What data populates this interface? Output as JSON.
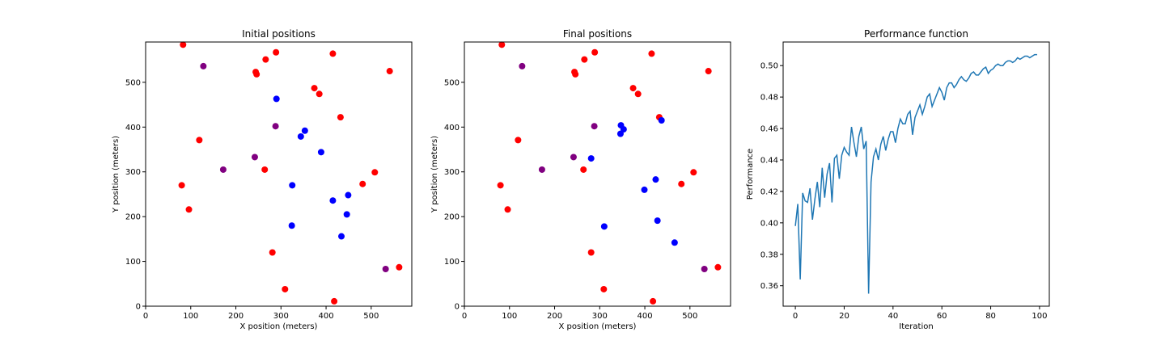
{
  "chart_data": [
    {
      "type": "scatter",
      "title": "Initial positions",
      "xlabel": "X position (meters)",
      "ylabel": "Y position (meters)",
      "xlim": [
        0,
        590
      ],
      "ylim": [
        0,
        590
      ],
      "xticks": [
        0,
        100,
        200,
        300,
        400,
        500
      ],
      "yticks": [
        0,
        100,
        200,
        300,
        400,
        500
      ],
      "grid": false,
      "colors": {
        "red": "#ff0000",
        "blue": "#0000ff",
        "purple": "#800080"
      },
      "points": [
        {
          "x": 83,
          "y": 584,
          "c": "red"
        },
        {
          "x": 128,
          "y": 536,
          "c": "purple"
        },
        {
          "x": 244,
          "y": 523,
          "c": "red"
        },
        {
          "x": 246,
          "y": 518,
          "c": "red"
        },
        {
          "x": 266,
          "y": 551,
          "c": "red"
        },
        {
          "x": 289,
          "y": 567,
          "c": "red"
        },
        {
          "x": 415,
          "y": 564,
          "c": "red"
        },
        {
          "x": 541,
          "y": 525,
          "c": "red"
        },
        {
          "x": 374,
          "y": 487,
          "c": "red"
        },
        {
          "x": 385,
          "y": 474,
          "c": "red"
        },
        {
          "x": 290,
          "y": 463,
          "c": "blue"
        },
        {
          "x": 432,
          "y": 422,
          "c": "red"
        },
        {
          "x": 288,
          "y": 402,
          "c": "purple"
        },
        {
          "x": 353,
          "y": 392,
          "c": "blue"
        },
        {
          "x": 344,
          "y": 379,
          "c": "blue"
        },
        {
          "x": 119,
          "y": 371,
          "c": "red"
        },
        {
          "x": 389,
          "y": 344,
          "c": "blue"
        },
        {
          "x": 242,
          "y": 333,
          "c": "purple"
        },
        {
          "x": 172,
          "y": 305,
          "c": "purple"
        },
        {
          "x": 264,
          "y": 305,
          "c": "red"
        },
        {
          "x": 508,
          "y": 299,
          "c": "red"
        },
        {
          "x": 80,
          "y": 270,
          "c": "red"
        },
        {
          "x": 325,
          "y": 270,
          "c": "blue"
        },
        {
          "x": 481,
          "y": 273,
          "c": "red"
        },
        {
          "x": 449,
          "y": 248,
          "c": "blue"
        },
        {
          "x": 415,
          "y": 236,
          "c": "blue"
        },
        {
          "x": 96,
          "y": 216,
          "c": "red"
        },
        {
          "x": 446,
          "y": 205,
          "c": "blue"
        },
        {
          "x": 324,
          "y": 180,
          "c": "blue"
        },
        {
          "x": 434,
          "y": 156,
          "c": "blue"
        },
        {
          "x": 281,
          "y": 120,
          "c": "red"
        },
        {
          "x": 532,
          "y": 83,
          "c": "purple"
        },
        {
          "x": 562,
          "y": 87,
          "c": "red"
        },
        {
          "x": 309,
          "y": 38,
          "c": "red"
        },
        {
          "x": 418,
          "y": 11,
          "c": "red"
        }
      ]
    },
    {
      "type": "scatter",
      "title": "Final positions",
      "xlabel": "X position (meters)",
      "ylabel": "Y position (meters)",
      "xlim": [
        0,
        590
      ],
      "ylim": [
        0,
        590
      ],
      "xticks": [
        0,
        100,
        200,
        300,
        400,
        500
      ],
      "yticks": [
        0,
        100,
        200,
        300,
        400,
        500
      ],
      "grid": false,
      "colors": {
        "red": "#ff0000",
        "blue": "#0000ff",
        "purple": "#800080"
      },
      "points": [
        {
          "x": 83,
          "y": 584,
          "c": "red"
        },
        {
          "x": 128,
          "y": 536,
          "c": "purple"
        },
        {
          "x": 244,
          "y": 523,
          "c": "red"
        },
        {
          "x": 246,
          "y": 518,
          "c": "red"
        },
        {
          "x": 266,
          "y": 551,
          "c": "red"
        },
        {
          "x": 289,
          "y": 567,
          "c": "red"
        },
        {
          "x": 415,
          "y": 564,
          "c": "red"
        },
        {
          "x": 541,
          "y": 525,
          "c": "red"
        },
        {
          "x": 374,
          "y": 487,
          "c": "red"
        },
        {
          "x": 385,
          "y": 474,
          "c": "red"
        },
        {
          "x": 288,
          "y": 402,
          "c": "purple"
        },
        {
          "x": 432,
          "y": 422,
          "c": "red"
        },
        {
          "x": 437,
          "y": 415,
          "c": "blue"
        },
        {
          "x": 347,
          "y": 404,
          "c": "blue"
        },
        {
          "x": 353,
          "y": 395,
          "c": "blue"
        },
        {
          "x": 346,
          "y": 385,
          "c": "blue"
        },
        {
          "x": 119,
          "y": 371,
          "c": "red"
        },
        {
          "x": 242,
          "y": 333,
          "c": "purple"
        },
        {
          "x": 281,
          "y": 330,
          "c": "blue"
        },
        {
          "x": 172,
          "y": 305,
          "c": "purple"
        },
        {
          "x": 264,
          "y": 305,
          "c": "red"
        },
        {
          "x": 508,
          "y": 299,
          "c": "red"
        },
        {
          "x": 424,
          "y": 283,
          "c": "blue"
        },
        {
          "x": 80,
          "y": 270,
          "c": "red"
        },
        {
          "x": 481,
          "y": 273,
          "c": "red"
        },
        {
          "x": 399,
          "y": 260,
          "c": "blue"
        },
        {
          "x": 96,
          "y": 216,
          "c": "red"
        },
        {
          "x": 428,
          "y": 191,
          "c": "blue"
        },
        {
          "x": 310,
          "y": 178,
          "c": "blue"
        },
        {
          "x": 466,
          "y": 142,
          "c": "blue"
        },
        {
          "x": 281,
          "y": 120,
          "c": "red"
        },
        {
          "x": 532,
          "y": 83,
          "c": "purple"
        },
        {
          "x": 562,
          "y": 87,
          "c": "red"
        },
        {
          "x": 309,
          "y": 38,
          "c": "red"
        },
        {
          "x": 418,
          "y": 11,
          "c": "red"
        }
      ]
    },
    {
      "type": "line",
      "title": "Performance function",
      "xlabel": "Iteration",
      "ylabel": "Performance",
      "xlim": [
        -5,
        104
      ],
      "ylim": [
        0.347,
        0.515
      ],
      "xticks": [
        0,
        20,
        40,
        60,
        80,
        100
      ],
      "yticks": [
        0.36,
        0.38,
        0.4,
        0.42,
        0.44,
        0.46,
        0.48,
        0.5
      ],
      "grid": false,
      "color": "#1f77b4",
      "x": [
        0,
        1,
        2,
        3,
        4,
        5,
        6,
        7,
        8,
        9,
        10,
        11,
        12,
        13,
        14,
        15,
        16,
        17,
        18,
        19,
        20,
        21,
        22,
        23,
        24,
        25,
        26,
        27,
        28,
        29,
        30,
        31,
        32,
        33,
        34,
        35,
        36,
        37,
        38,
        39,
        40,
        41,
        42,
        43,
        44,
        45,
        46,
        47,
        48,
        49,
        50,
        51,
        52,
        53,
        54,
        55,
        56,
        57,
        58,
        59,
        60,
        61,
        62,
        63,
        64,
        65,
        66,
        67,
        68,
        69,
        70,
        71,
        72,
        73,
        74,
        75,
        76,
        77,
        78,
        79,
        80,
        81,
        82,
        83,
        84,
        85,
        86,
        87,
        88,
        89,
        90,
        91,
        92,
        93,
        94,
        95,
        96,
        97,
        98,
        99
      ],
      "y": [
        0.398,
        0.412,
        0.364,
        0.419,
        0.414,
        0.413,
        0.422,
        0.402,
        0.415,
        0.426,
        0.41,
        0.435,
        0.416,
        0.431,
        0.438,
        0.413,
        0.441,
        0.443,
        0.428,
        0.443,
        0.448,
        0.445,
        0.443,
        0.461,
        0.451,
        0.442,
        0.455,
        0.461,
        0.447,
        0.452,
        0.355,
        0.426,
        0.442,
        0.447,
        0.44,
        0.45,
        0.455,
        0.446,
        0.453,
        0.458,
        0.458,
        0.451,
        0.46,
        0.466,
        0.463,
        0.463,
        0.469,
        0.471,
        0.456,
        0.467,
        0.471,
        0.475,
        0.469,
        0.474,
        0.48,
        0.482,
        0.474,
        0.478,
        0.482,
        0.486,
        0.483,
        0.478,
        0.486,
        0.489,
        0.489,
        0.486,
        0.488,
        0.491,
        0.493,
        0.491,
        0.49,
        0.492,
        0.495,
        0.496,
        0.494,
        0.494,
        0.496,
        0.498,
        0.499,
        0.495,
        0.497,
        0.498,
        0.5,
        0.501,
        0.5,
        0.5,
        0.502,
        0.503,
        0.503,
        0.502,
        0.503,
        0.505,
        0.504,
        0.505,
        0.506,
        0.506,
        0.505,
        0.506,
        0.507,
        0.507
      ]
    }
  ]
}
